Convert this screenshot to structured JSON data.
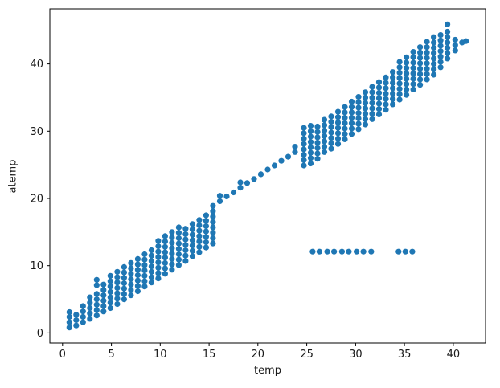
{
  "chart_data": {
    "type": "scatter",
    "title": "",
    "xlabel": "temp",
    "ylabel": "atemp",
    "xlim": [
      -1.3,
      43.3
    ],
    "ylim": [
      -1.5,
      48.2
    ],
    "xticks": [
      0,
      5,
      10,
      15,
      20,
      25,
      30,
      35,
      40
    ],
    "yticks": [
      0,
      10,
      20,
      30,
      40
    ],
    "grid": false,
    "legend": "none",
    "marker_color": "#1f77b4",
    "columns": [
      {
        "x": 0.7,
        "ys": [
          0.8,
          1.6,
          2.4,
          3.1
        ]
      },
      {
        "x": 1.4,
        "ys": [
          1.1,
          1.9,
          2.7
        ]
      },
      {
        "x": 2.1,
        "ys": [
          1.6,
          2.4,
          3.2,
          4.0
        ]
      },
      {
        "x": 2.8,
        "ys": [
          2.1,
          2.9,
          3.7,
          4.5,
          5.3
        ]
      },
      {
        "x": 3.5,
        "ys": [
          2.6,
          3.4,
          4.2,
          5.0,
          5.8,
          7.1,
          7.9
        ]
      },
      {
        "x": 4.2,
        "ys": [
          3.2,
          4.0,
          4.8,
          5.6,
          6.4,
          7.2
        ]
      },
      {
        "x": 4.9,
        "ys": [
          3.7,
          4.5,
          5.3,
          6.1,
          6.9,
          7.7,
          8.5
        ]
      },
      {
        "x": 5.6,
        "ys": [
          4.3,
          5.1,
          5.9,
          6.7,
          7.5,
          8.3,
          9.1
        ]
      },
      {
        "x": 6.3,
        "ys": [
          5.0,
          5.8,
          6.6,
          7.4,
          8.2,
          9.0,
          9.8
        ]
      },
      {
        "x": 7.0,
        "ys": [
          5.6,
          6.4,
          7.2,
          8.0,
          8.8,
          9.6,
          10.4
        ]
      },
      {
        "x": 7.7,
        "ys": [
          6.2,
          7.0,
          7.8,
          8.6,
          9.4,
          10.2,
          11.0
        ]
      },
      {
        "x": 8.4,
        "ys": [
          6.9,
          7.7,
          8.5,
          9.3,
          10.1,
          10.9,
          11.7
        ]
      },
      {
        "x": 9.1,
        "ys": [
          7.5,
          8.3,
          9.1,
          9.9,
          10.7,
          11.5,
          12.3
        ]
      },
      {
        "x": 9.8,
        "ys": [
          8.1,
          8.9,
          9.7,
          10.5,
          11.3,
          12.1,
          12.9,
          13.7
        ]
      },
      {
        "x": 10.5,
        "ys": [
          8.8,
          9.6,
          10.4,
          11.2,
          12.0,
          12.8,
          13.6,
          14.4
        ]
      },
      {
        "x": 11.2,
        "ys": [
          9.4,
          10.2,
          11.0,
          11.8,
          12.6,
          13.4,
          14.2,
          15.0
        ]
      },
      {
        "x": 11.9,
        "ys": [
          10.1,
          10.9,
          11.7,
          12.5,
          13.3,
          14.1,
          14.9,
          15.7
        ]
      },
      {
        "x": 12.6,
        "ys": [
          10.7,
          11.5,
          12.3,
          13.1,
          13.9,
          14.7,
          15.5
        ]
      },
      {
        "x": 13.3,
        "ys": [
          11.4,
          12.2,
          13.0,
          13.8,
          14.6,
          15.4,
          16.2
        ]
      },
      {
        "x": 14.0,
        "ys": [
          12.0,
          12.8,
          13.6,
          14.4,
          15.2,
          16.0,
          16.8
        ]
      },
      {
        "x": 14.7,
        "ys": [
          12.7,
          13.5,
          14.3,
          15.1,
          15.9,
          16.7,
          17.5
        ]
      },
      {
        "x": 15.4,
        "ys": [
          13.3,
          14.1,
          14.9,
          15.7,
          16.5,
          17.3,
          18.1,
          18.9
        ]
      },
      {
        "x": 16.1,
        "ys": [
          19.6,
          20.4
        ]
      },
      {
        "x": 16.8,
        "ys": [
          20.3
        ]
      },
      {
        "x": 17.5,
        "ys": [
          20.9
        ]
      },
      {
        "x": 18.2,
        "ys": [
          21.6,
          22.4
        ]
      },
      {
        "x": 18.9,
        "ys": [
          22.3
        ]
      },
      {
        "x": 19.6,
        "ys": [
          22.9
        ]
      },
      {
        "x": 20.3,
        "ys": [
          23.6
        ]
      },
      {
        "x": 21.0,
        "ys": [
          24.3
        ]
      },
      {
        "x": 21.7,
        "ys": [
          24.9
        ]
      },
      {
        "x": 22.4,
        "ys": [
          25.6
        ]
      },
      {
        "x": 23.1,
        "ys": [
          26.2
        ]
      },
      {
        "x": 23.8,
        "ys": [
          26.9,
          27.7
        ]
      },
      {
        "x": 24.7,
        "ys": [
          24.9,
          25.7,
          26.5,
          27.3,
          28.1,
          28.9,
          29.7,
          30.5
        ]
      },
      {
        "x": 25.4,
        "ys": [
          25.2,
          26.0,
          26.8,
          27.6,
          28.4,
          29.2,
          30.0,
          30.8
        ]
      },
      {
        "x": 26.1,
        "ys": [
          25.9,
          26.7,
          27.5,
          28.3,
          29.1,
          29.9,
          30.7
        ]
      },
      {
        "x": 26.8,
        "ys": [
          26.9,
          27.7,
          28.5,
          29.3,
          30.1,
          30.9,
          31.7
        ]
      },
      {
        "x": 27.5,
        "ys": [
          27.4,
          28.2,
          29.0,
          29.8,
          30.6,
          31.4,
          32.2
        ]
      },
      {
        "x": 28.2,
        "ys": [
          28.1,
          28.9,
          29.7,
          30.5,
          31.3,
          32.1,
          32.9
        ]
      },
      {
        "x": 28.9,
        "ys": [
          28.8,
          29.6,
          30.4,
          31.2,
          32.0,
          32.8,
          33.6
        ]
      },
      {
        "x": 29.6,
        "ys": [
          29.6,
          30.4,
          31.2,
          32.0,
          32.8,
          33.6,
          34.4
        ]
      },
      {
        "x": 30.3,
        "ys": [
          30.3,
          31.1,
          31.9,
          32.7,
          33.5,
          34.3,
          35.1
        ]
      },
      {
        "x": 31.0,
        "ys": [
          31.0,
          31.8,
          32.6,
          33.4,
          34.2,
          35.0,
          35.8
        ]
      },
      {
        "x": 31.7,
        "ys": [
          31.8,
          32.6,
          33.4,
          34.2,
          35.0,
          35.8,
          36.6
        ]
      },
      {
        "x": 32.4,
        "ys": [
          32.5,
          33.3,
          34.1,
          34.9,
          35.7,
          36.5,
          37.3
        ]
      },
      {
        "x": 33.1,
        "ys": [
          33.2,
          34.0,
          34.8,
          35.6,
          36.4,
          37.2,
          38.0
        ]
      },
      {
        "x": 33.8,
        "ys": [
          34.0,
          34.8,
          35.6,
          36.4,
          37.2,
          38.0,
          38.8
        ]
      },
      {
        "x": 34.5,
        "ys": [
          34.7,
          35.5,
          36.3,
          37.1,
          37.9,
          38.7,
          39.5,
          40.3
        ]
      },
      {
        "x": 35.2,
        "ys": [
          35.4,
          36.2,
          37.0,
          37.8,
          38.6,
          39.4,
          40.2,
          41.0
        ]
      },
      {
        "x": 35.9,
        "ys": [
          36.2,
          37.0,
          37.8,
          38.6,
          39.4,
          40.2,
          41.0,
          41.8
        ]
      },
      {
        "x": 36.6,
        "ys": [
          36.9,
          37.7,
          38.5,
          39.3,
          40.1,
          40.9,
          41.7,
          42.5
        ]
      },
      {
        "x": 37.3,
        "ys": [
          37.7,
          38.5,
          39.3,
          40.1,
          40.9,
          41.7,
          42.5,
          43.3
        ]
      },
      {
        "x": 38.0,
        "ys": [
          38.4,
          39.2,
          40.0,
          40.8,
          41.6,
          42.4,
          43.2,
          44.0
        ]
      },
      {
        "x": 38.7,
        "ys": [
          39.5,
          40.3,
          41.1,
          41.9,
          42.7,
          43.5,
          44.3
        ]
      },
      {
        "x": 39.4,
        "ys": [
          40.8,
          41.6,
          42.4,
          43.2,
          44.0,
          44.8,
          45.9
        ]
      },
      {
        "x": 40.2,
        "ys": [
          42.0,
          42.8,
          43.6
        ]
      },
      {
        "x": 40.9,
        "ys": [
          43.2
        ]
      },
      {
        "x": 41.3,
        "ys": [
          43.4
        ]
      }
    ],
    "anomaly_row": {
      "atemp": 12.1,
      "temps": [
        25.6,
        26.3,
        27.1,
        27.8,
        28.6,
        29.3,
        30.1,
        30.8,
        31.6,
        34.4,
        35.1,
        35.8
      ]
    }
  }
}
